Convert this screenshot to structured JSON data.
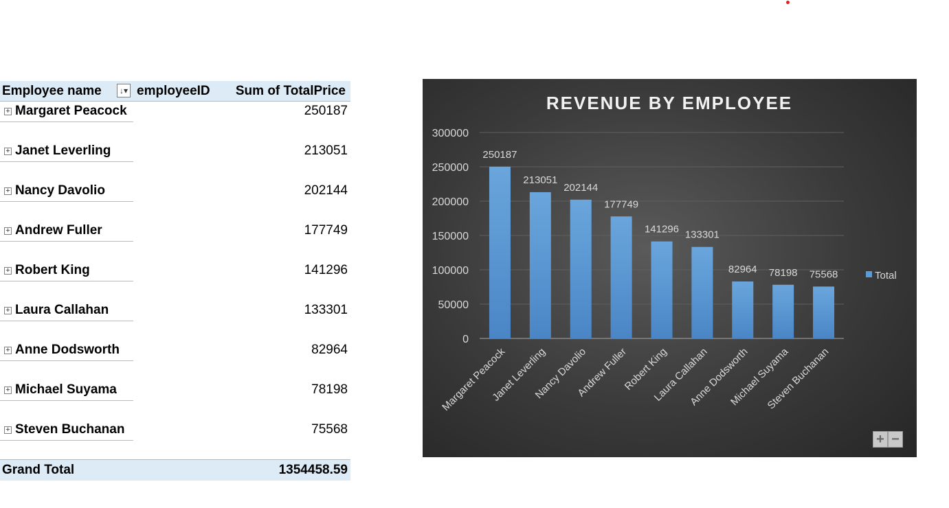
{
  "pivot": {
    "headers": {
      "employee_name": "Employee name",
      "employee_id": "employeeID",
      "sum": "Sum of TotalPrice"
    },
    "rows": [
      {
        "name": "Margaret Peacock",
        "value": "250187"
      },
      {
        "name": "Janet Leverling",
        "value": "213051"
      },
      {
        "name": "Nancy Davolio",
        "value": "202144"
      },
      {
        "name": "Andrew Fuller",
        "value": "177749"
      },
      {
        "name": "Robert King",
        "value": "141296"
      },
      {
        "name": "Laura Callahan",
        "value": "133301"
      },
      {
        "name": "Anne Dodsworth",
        "value": "82964"
      },
      {
        "name": "Michael Suyama",
        "value": "78198"
      },
      {
        "name": "Steven Buchanan",
        "value": "75568"
      }
    ],
    "grand_total_label": "Grand Total",
    "grand_total_value": "1354458.59"
  },
  "icons": {
    "filter": "sort-filter-icon",
    "expand": "expand-plus-icon",
    "zoom_in": "plus-icon",
    "zoom_out": "minus-icon"
  },
  "colors": {
    "bar": "#5b9bd5",
    "header_fill": "#ddebf7",
    "chart_bg": "#404040"
  },
  "chart_data": {
    "type": "bar",
    "title": "REVENUE BY EMPLOYEE",
    "categories": [
      "Margaret Peacock",
      "Janet Leverling",
      "Nancy Davolio",
      "Andrew Fuller",
      "Robert King",
      "Laura Callahan",
      "Anne Dodsworth",
      "Michael Suyama",
      "Steven Buchanan"
    ],
    "series": [
      {
        "name": "Total",
        "values": [
          250187,
          213051,
          202144,
          177749,
          141296,
          133301,
          82964,
          78198,
          75568
        ]
      }
    ],
    "yticks": [
      0,
      50000,
      100000,
      150000,
      200000,
      250000,
      300000
    ],
    "ylim": [
      0,
      300000
    ],
    "grid": true,
    "legend": "right",
    "data_labels": true
  }
}
